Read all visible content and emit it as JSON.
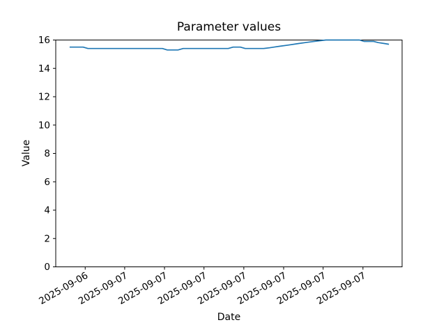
{
  "chart_data": {
    "type": "line",
    "title": "Parameter values",
    "xlabel": "Date",
    "ylabel": "Value",
    "ylim": [
      0,
      16
    ],
    "y_ticks": [
      0,
      2,
      4,
      6,
      8,
      10,
      12,
      14,
      16
    ],
    "x_tick_labels": [
      "2025-09-06",
      "2025-09-07",
      "2025-09-07",
      "2025-09-07",
      "2025-09-07",
      "2025-09-07",
      "2025-09-07",
      "2025-09-07"
    ],
    "x_tick_positions": [
      0.085,
      0.199,
      0.314,
      0.428,
      0.543,
      0.658,
      0.772,
      0.887
    ],
    "x_tick_rotation_deg": 30,
    "grid": false,
    "legend": "none",
    "line_color": "#1f77b4",
    "axis_color": "#000000",
    "background_color": "#ffffff",
    "series": [
      {
        "name": "parameter-values-line",
        "points": [
          [
            0.04,
            15.5
          ],
          [
            0.079,
            15.5
          ],
          [
            0.093,
            15.4
          ],
          [
            0.308,
            15.4
          ],
          [
            0.322,
            15.3
          ],
          [
            0.353,
            15.3
          ],
          [
            0.368,
            15.4
          ],
          [
            0.498,
            15.4
          ],
          [
            0.512,
            15.5
          ],
          [
            0.533,
            15.5
          ],
          [
            0.547,
            15.4
          ],
          [
            0.6,
            15.4
          ],
          [
            0.617,
            15.45
          ],
          [
            0.63,
            15.5
          ],
          [
            0.646,
            15.56
          ],
          [
            0.671,
            15.64
          ],
          [
            0.7,
            15.75
          ],
          [
            0.726,
            15.84
          ],
          [
            0.752,
            15.92
          ],
          [
            0.78,
            16.0
          ],
          [
            0.877,
            16.0
          ],
          [
            0.89,
            15.9
          ],
          [
            0.918,
            15.9
          ],
          [
            0.931,
            15.82
          ],
          [
            0.95,
            15.75
          ],
          [
            0.962,
            15.7
          ]
        ]
      }
    ]
  }
}
